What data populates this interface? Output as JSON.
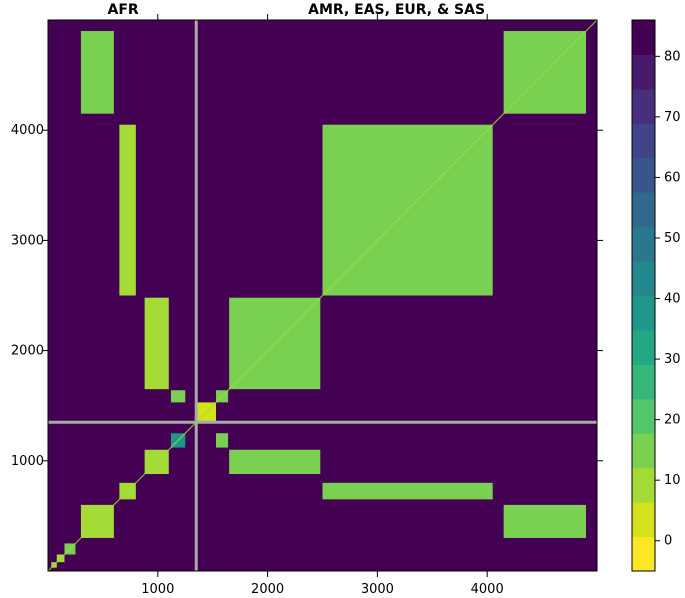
{
  "chart_data": {
    "type": "heatmap",
    "title": "",
    "xlabel": "",
    "ylabel": "",
    "top_labels": [
      "AFR",
      "AMR, EAS, EUR, & SAS"
    ],
    "x_ticks": [
      1000,
      2000,
      3000,
      4000
    ],
    "y_ticks": [
      1000,
      2000,
      3000,
      4000
    ],
    "xlim": [
      0,
      5000
    ],
    "ylim": [
      0,
      5000
    ],
    "divider": 1350,
    "colorbar": {
      "min": -5,
      "max": 86,
      "ticks": [
        0,
        10,
        20,
        30,
        40,
        50,
        60,
        70,
        80
      ],
      "colors": [
        "#fde725",
        "#d2e21b",
        "#a5db36",
        "#7ad151",
        "#54c568",
        "#35b779",
        "#22a884",
        "#1f988b",
        "#23888e",
        "#2a788e",
        "#31688e",
        "#39568c",
        "#414487",
        "#472f7d",
        "#481a6c",
        "#440154"
      ]
    },
    "background_value": 84,
    "blocks": [
      {
        "x": [
          30,
          80
        ],
        "y": [
          30,
          80
        ],
        "value": 10
      },
      {
        "x": [
          80,
          150
        ],
        "y": [
          80,
          150
        ],
        "value": 12
      },
      {
        "x": [
          150,
          250
        ],
        "y": [
          150,
          250
        ],
        "value": 14
      },
      {
        "x": [
          300,
          600
        ],
        "y": [
          300,
          600
        ],
        "value": 12
      },
      {
        "x": [
          650,
          800
        ],
        "y": [
          650,
          800
        ],
        "value": 12
      },
      {
        "x": [
          880,
          1100
        ],
        "y": [
          880,
          1100
        ],
        "value": 12
      },
      {
        "x": [
          1120,
          1250
        ],
        "y": [
          1120,
          1250
        ],
        "value": 35
      },
      {
        "x": [
          1360,
          1530
        ],
        "y": [
          1360,
          1530
        ],
        "value": 6
      },
      {
        "x": [
          1530,
          1640
        ],
        "y": [
          1530,
          1640
        ],
        "value": 14
      },
      {
        "x": [
          1650,
          2480
        ],
        "y": [
          1650,
          2480
        ],
        "value": 16
      },
      {
        "x": [
          2500,
          4050
        ],
        "y": [
          2500,
          4050
        ],
        "value": 14
      },
      {
        "x": [
          4150,
          4900
        ],
        "y": [
          4150,
          4900
        ],
        "value": 16
      },
      {
        "x": [
          300,
          600
        ],
        "y": [
          4150,
          4900
        ],
        "value": 14
      },
      {
        "x": [
          650,
          800
        ],
        "y": [
          2500,
          4050
        ],
        "value": 12
      },
      {
        "x": [
          880,
          1100
        ],
        "y": [
          1650,
          2480
        ],
        "value": 12
      },
      {
        "x": [
          1120,
          1250
        ],
        "y": [
          1530,
          1640
        ],
        "value": 16
      },
      {
        "x": [
          1650,
          2480
        ],
        "y": [
          880,
          1100
        ],
        "value": 14
      },
      {
        "x": [
          1530,
          1640
        ],
        "y": [
          1120,
          1250
        ],
        "value": 16
      },
      {
        "x": [
          4150,
          4900
        ],
        "y": [
          300,
          600
        ],
        "value": 14
      },
      {
        "x": [
          2500,
          4050
        ],
        "y": [
          650,
          800
        ],
        "value": 14
      }
    ]
  }
}
